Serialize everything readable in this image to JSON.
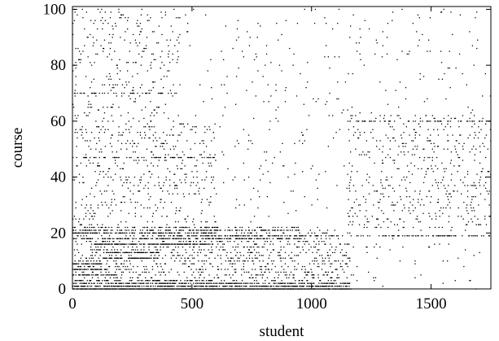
{
  "chart_data": {
    "type": "scatter",
    "subtype": "sparse-matrix-spy",
    "title": "",
    "xlabel": "student",
    "ylabel": "course",
    "xlim": [
      0,
      1750
    ],
    "ylim": [
      0,
      101
    ],
    "xticks": [
      0,
      500,
      1000,
      1500
    ],
    "yticks": [
      0,
      20,
      40,
      60,
      80,
      100
    ],
    "grid": false,
    "legend": "none",
    "marker_color": "#000000",
    "seed": 12345,
    "courses": 101,
    "students": 1750,
    "density_regions": [
      {
        "x0": 0,
        "x1": 1750,
        "y0": 0,
        "y1": 101,
        "density": 0.012
      },
      {
        "x0": 0,
        "x1": 450,
        "y0": 60,
        "y1": 101,
        "density": 0.04
      },
      {
        "x0": 0,
        "x1": 600,
        "y0": 22,
        "y1": 60,
        "density": 0.05
      },
      {
        "x0": 1150,
        "x1": 1750,
        "y0": 22,
        "y1": 63,
        "density": 0.05
      },
      {
        "x0": 0,
        "x1": 1160,
        "y0": 0,
        "y1": 22,
        "density": 0.12
      }
    ],
    "dense_rows": [
      {
        "course": 0,
        "x0": 0,
        "x1": 1160,
        "density": 0.85
      },
      {
        "course": 1,
        "x0": 0,
        "x1": 1160,
        "density": 0.6
      },
      {
        "course": 2,
        "x0": 0,
        "x1": 1160,
        "density": 0.5
      },
      {
        "course": 3,
        "x0": 0,
        "x1": 600,
        "density": 0.4
      },
      {
        "course": 5,
        "x0": 0,
        "x1": 180,
        "density": 0.6
      },
      {
        "course": 7,
        "x0": 0,
        "x1": 140,
        "density": 0.7
      },
      {
        "course": 9,
        "x0": 0,
        "x1": 120,
        "density": 0.6
      },
      {
        "course": 11,
        "x0": 130,
        "x1": 360,
        "density": 0.6
      },
      {
        "course": 13,
        "x0": 140,
        "x1": 360,
        "density": 0.7
      },
      {
        "course": 16,
        "x0": 90,
        "x1": 580,
        "density": 0.7
      },
      {
        "course": 18,
        "x0": 0,
        "x1": 950,
        "density": 0.4
      },
      {
        "course": 19,
        "x0": 350,
        "x1": 1750,
        "density": 0.35
      },
      {
        "course": 20,
        "x0": 0,
        "x1": 600,
        "density": 0.4
      },
      {
        "course": 21,
        "x0": 0,
        "x1": 950,
        "density": 0.3
      },
      {
        "course": 22,
        "x0": 0,
        "x1": 950,
        "density": 0.25
      },
      {
        "course": 47,
        "x0": 0,
        "x1": 600,
        "density": 0.2
      },
      {
        "course": 60,
        "x0": 1150,
        "x1": 1750,
        "density": 0.25
      },
      {
        "course": 70,
        "x0": 0,
        "x1": 450,
        "density": 0.25
      }
    ]
  }
}
